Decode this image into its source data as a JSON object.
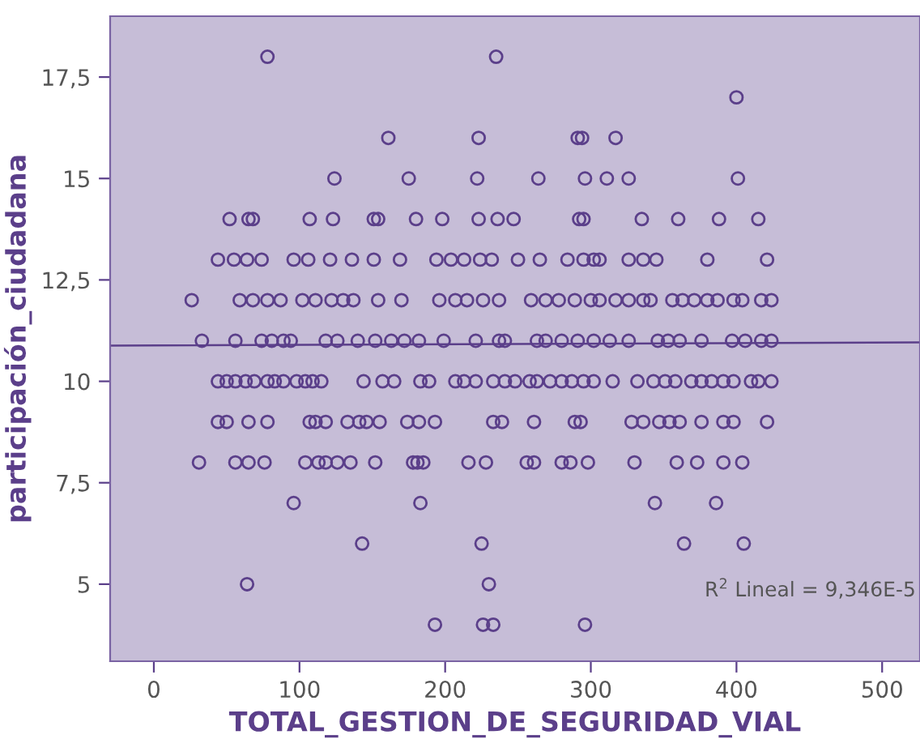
{
  "chart_data": {
    "type": "scatter",
    "xlabel": "TOTAL_GESTION_DE_SEGURIDAD_VIAL",
    "ylabel": "participación_ciudadana",
    "annotations": [
      "R$^{2}$ Lineal = 9,346E-5"
    ],
    "xlim": [
      -30,
      526
    ],
    "ylim": [
      3.1,
      19
    ],
    "xticks": [
      0,
      100,
      200,
      300,
      400,
      500
    ],
    "yticks": [
      {
        "value": 5,
        "label": "5"
      },
      {
        "value": 7.5,
        "label": "7,5"
      },
      {
        "value": 10,
        "label": "10"
      },
      {
        "value": 12.5,
        "label": "12,5"
      },
      {
        "value": 15,
        "label": "15"
      },
      {
        "value": 17.5,
        "label": "17,5"
      }
    ],
    "grid": false,
    "legend": false,
    "series": [
      {
        "marker": "circle",
        "color": "#5b3f8a",
        "x": [
          78,
          235,
          400,
          161,
          223,
          291,
          294,
          317,
          124,
          175,
          222,
          264,
          296,
          311,
          326,
          401,
          52,
          65,
          68,
          107,
          123,
          151,
          154,
          180,
          198,
          223,
          236,
          247,
          292,
          295,
          335,
          360,
          388,
          415,
          44,
          55,
          64,
          74,
          96,
          106,
          121,
          136,
          151,
          169,
          194,
          204,
          213,
          224,
          232,
          250,
          265,
          284,
          295,
          302,
          306,
          326,
          336,
          345,
          380,
          421,
          26,
          59,
          68,
          78,
          87,
          102,
          111,
          122,
          130,
          137,
          154,
          170,
          196,
          207,
          215,
          226,
          237,
          259,
          269,
          278,
          289,
          300,
          306,
          317,
          326,
          336,
          341,
          356,
          363,
          371,
          380,
          387,
          398,
          404,
          417,
          424,
          33,
          56,
          74,
          81,
          89,
          94,
          118,
          126,
          140,
          152,
          163,
          172,
          182,
          199,
          221,
          237,
          241,
          263,
          269,
          280,
          291,
          302,
          313,
          326,
          346,
          353,
          361,
          376,
          397,
          406,
          417,
          424,
          44,
          50,
          56,
          63,
          69,
          78,
          83,
          89,
          98,
          104,
          109,
          115,
          144,
          157,
          165,
          183,
          189,
          207,
          213,
          221,
          233,
          241,
          248,
          258,
          263,
          272,
          280,
          287,
          295,
          302,
          315,
          332,
          343,
          351,
          358,
          369,
          376,
          383,
          391,
          398,
          410,
          415,
          424,
          44,
          50,
          65,
          78,
          107,
          111,
          118,
          133,
          141,
          146,
          155,
          174,
          182,
          193,
          233,
          239,
          261,
          289,
          293,
          328,
          336,
          347,
          354,
          361,
          376,
          391,
          398,
          421,
          31,
          56,
          65,
          76,
          104,
          113,
          118,
          126,
          135,
          152,
          178,
          181,
          185,
          216,
          228,
          256,
          261,
          280,
          286,
          298,
          330,
          359,
          373,
          391,
          404,
          96,
          183,
          344,
          386,
          143,
          225,
          364,
          405,
          64,
          230,
          193,
          226,
          233,
          296
        ],
        "values": [
          18,
          18,
          17,
          16,
          16,
          16,
          16,
          16,
          15,
          15,
          15,
          15,
          15,
          15,
          15,
          15,
          14,
          14,
          14,
          14,
          14,
          14,
          14,
          14,
          14,
          14,
          14,
          14,
          14,
          14,
          14,
          14,
          14,
          14,
          13,
          13,
          13,
          13,
          13,
          13,
          13,
          13,
          13,
          13,
          13,
          13,
          13,
          13,
          13,
          13,
          13,
          13,
          13,
          13,
          13,
          13,
          13,
          13,
          13,
          13,
          12,
          12,
          12,
          12,
          12,
          12,
          12,
          12,
          12,
          12,
          12,
          12,
          12,
          12,
          12,
          12,
          12,
          12,
          12,
          12,
          12,
          12,
          12,
          12,
          12,
          12,
          12,
          12,
          12,
          12,
          12,
          12,
          12,
          12,
          12,
          12,
          11,
          11,
          11,
          11,
          11,
          11,
          11,
          11,
          11,
          11,
          11,
          11,
          11,
          11,
          11,
          11,
          11,
          11,
          11,
          11,
          11,
          11,
          11,
          11,
          11,
          11,
          11,
          11,
          11,
          11,
          11,
          11,
          10,
          10,
          10,
          10,
          10,
          10,
          10,
          10,
          10,
          10,
          10,
          10,
          10,
          10,
          10,
          10,
          10,
          10,
          10,
          10,
          10,
          10,
          10,
          10,
          10,
          10,
          10,
          10,
          10,
          10,
          10,
          10,
          10,
          10,
          10,
          10,
          10,
          10,
          10,
          10,
          10,
          10,
          10,
          9,
          9,
          9,
          9,
          9,
          9,
          9,
          9,
          9,
          9,
          9,
          9,
          9,
          9,
          9,
          9,
          9,
          9,
          9,
          9,
          9,
          9,
          9,
          9,
          9,
          9,
          9,
          9,
          8,
          8,
          8,
          8,
          8,
          8,
          8,
          8,
          8,
          8,
          8,
          8,
          8,
          8,
          8,
          8,
          8,
          8,
          8,
          8,
          8,
          8,
          8,
          8,
          8,
          7,
          7,
          7,
          7,
          6,
          6,
          6,
          6,
          5,
          5,
          4,
          4,
          4,
          4
        ]
      },
      {
        "type": "line",
        "marker": "none",
        "color": "#5b3f8a",
        "x": [
          -30,
          526
        ],
        "values": [
          10.88,
          10.96
        ]
      }
    ]
  }
}
